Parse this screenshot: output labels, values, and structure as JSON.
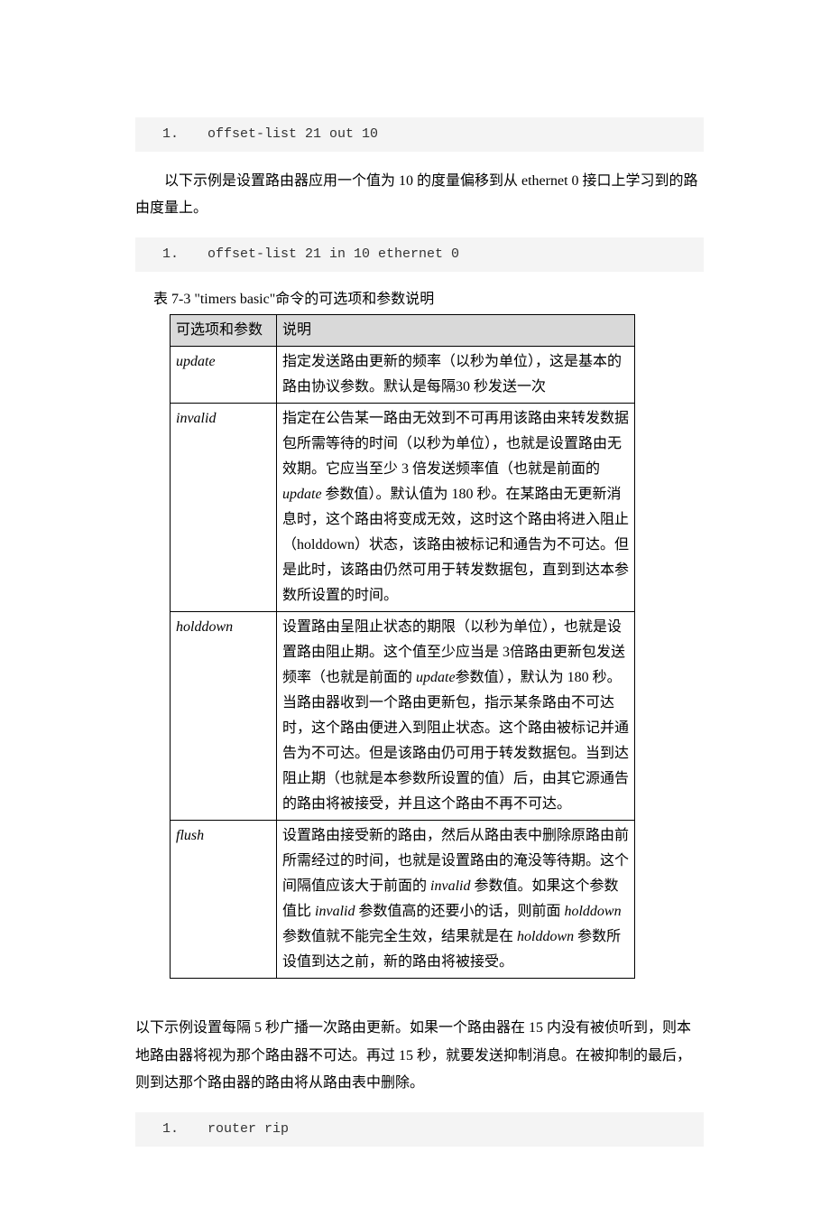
{
  "code1": {
    "num": "1.",
    "cmd": "offset-list 21 out 10"
  },
  "para1": "以下示例是设置路由器应用一个值为 10 的度量偏移到从 ethernet 0 接口上学习到的路由度量上。",
  "code2": {
    "num": "1.",
    "cmd": "offset-list 21 in 10 ethernet 0"
  },
  "caption": "表 7-3  \"timers basic\"命令的可选项和参数说明",
  "table": {
    "header": {
      "c1": "可选项和参数",
      "c2": "说明"
    },
    "rows": [
      {
        "param": "update",
        "desc": "指定发送路由更新的频率（以秒为单位），这是基本的路由协议参数。默认是每隔30 秒发送一次"
      },
      {
        "param": "invalid",
        "desc_parts": [
          "指定在公告某一路由无效到不可再用该路由来转发数据包所需等待的时间（以秒为单位），也就是设置路由无效期。它应当至少 3 倍发送频率值（也就是前面的 ",
          "update",
          " 参数值）。默认值为 180 秒。在某路由无更新消息时，这个路由将变成无效，这时这个路由将进入阻止（holddown）状态，该路由被标记和通告为不可达。但是此时，该路由仍然可用于转发数据包，直到到达本参数所设置的时间。"
        ]
      },
      {
        "param": "holddown",
        "desc_parts": [
          "设置路由呈阻止状态的期限（以秒为单位），也就是设置路由阻止期。这个值至少应当是 3倍路由更新包发送频率（也就是前面的 ",
          "update",
          "参数值），默认为 180 秒。当路由器收到一个路由更新包，指示某条路由不可达时，这个路由便进入到阻止状态。这个路由被标记并通告为不可达。但是该路由仍可用于转发数据包。当到达阻止期（也就是本参数所设置的值）后，由其它源通告的路由将被接受，并且这个路由不再不可达。"
        ]
      },
      {
        "param": "flush",
        "desc_parts": [
          "设置路由接受新的路由，然后从路由表中删除原路由前所需经过的时间，也就是设置路由的淹没等待期。这个间隔值应该大于前面的 ",
          "invalid",
          " 参数值。如果这个参数值比 ",
          "invalid",
          " 参数值高的还要小的话，则前面 ",
          "holddown",
          " 参数值就不能完全生效，结果就是在 ",
          "holddown",
          " 参数所设值到达之前，新的路由将被接受。"
        ]
      }
    ]
  },
  "para2": "以下示例设置每隔 5 秒广播一次路由更新。如果一个路由器在 15 内没有被侦听到，则本地路由器将视为那个路由器不可达。再过 15 秒，就要发送抑制消息。在被抑制的最后，则到达那个路由器的路由将从路由表中删除。",
  "code3": {
    "num": "1.",
    "cmd": "router rip"
  }
}
